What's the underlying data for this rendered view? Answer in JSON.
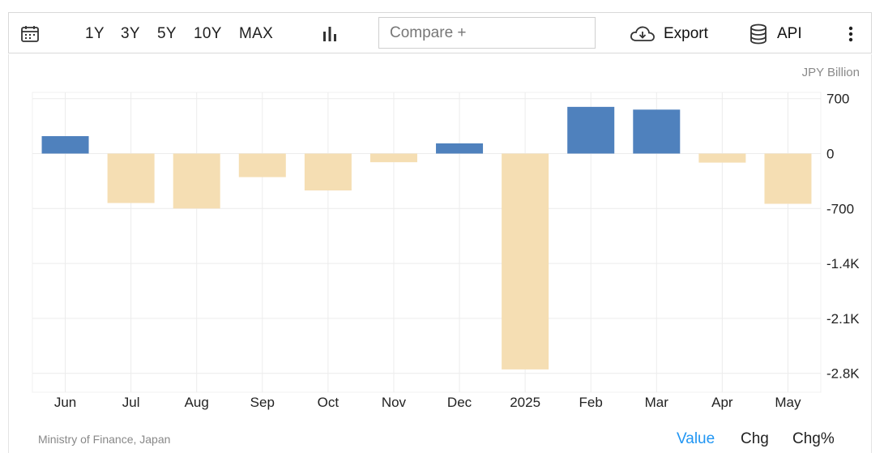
{
  "toolbar": {
    "calendar_icon": "calendar-icon",
    "ranges": [
      "1Y",
      "3Y",
      "5Y",
      "10Y",
      "MAX"
    ],
    "chart_type_icon": "bar-chart-icon",
    "compare_placeholder": "Compare +",
    "export_icon": "cloud-download-icon",
    "export_label": "Export",
    "api_icon": "database-icon",
    "api_label": "API",
    "more_icon": "vertical-dots-icon"
  },
  "colors": {
    "positive": "#4f81bd",
    "negative": "#f5deb3",
    "grid": "#ececec",
    "active_tab": "#2196f3"
  },
  "footer": {
    "source": "Ministry of Finance, Japan",
    "tabs": [
      "Value",
      "Chg",
      "Chg%"
    ],
    "active_tab": "Value"
  },
  "chart_data": {
    "type": "bar",
    "unit_label": "JPY Billion",
    "categories": [
      "Jun",
      "Jul",
      "Aug",
      "Sep",
      "Oct",
      "Nov",
      "Dec",
      "2025",
      "Feb",
      "Mar",
      "Apr",
      "May"
    ],
    "values": [
      222,
      -630,
      -700,
      -300,
      -470,
      -110,
      130,
      -2750,
      595,
      560,
      -115,
      -640
    ],
    "y_ticks": [
      700,
      0,
      -700,
      -1400,
      -2100,
      -2800
    ],
    "y_tick_labels": [
      "700",
      "0",
      "-700",
      "-1.4K",
      "-2.1K",
      "-2.8K"
    ],
    "ylim": [
      -2800,
      800
    ],
    "y_axis_position": "right",
    "grid": true
  }
}
